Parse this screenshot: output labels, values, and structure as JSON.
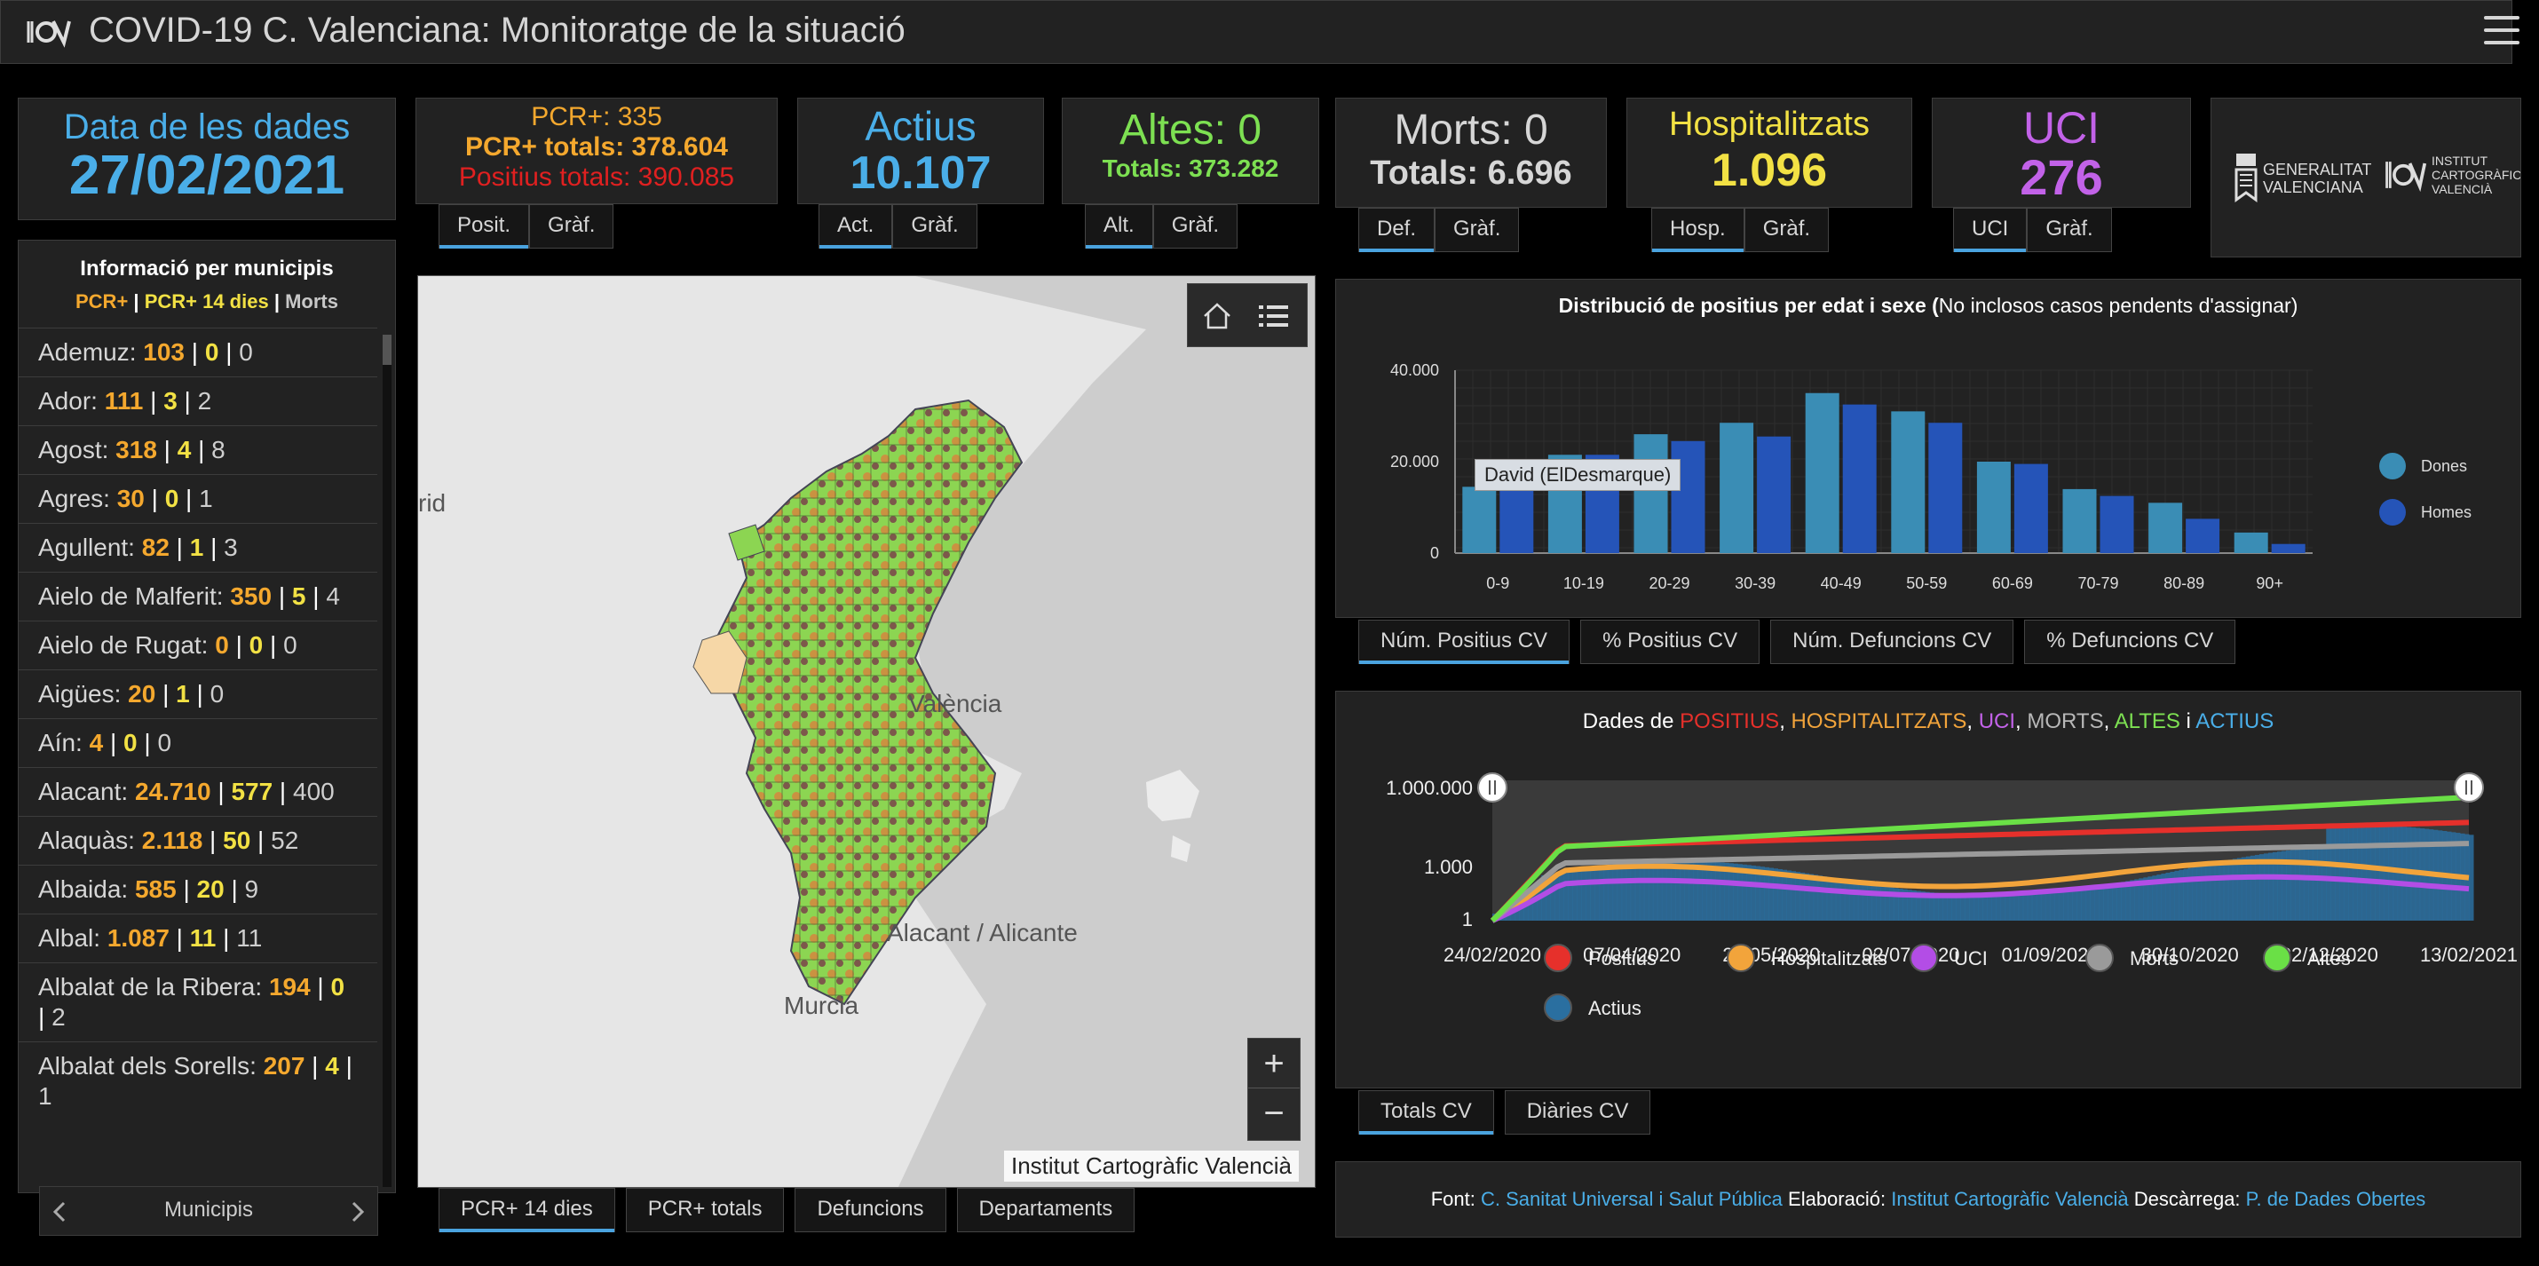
{
  "header": {
    "title": "COVID-19 C. Valenciana: Monitoratge de la situació"
  },
  "date_card": {
    "label": "Data de les dades",
    "value": "27/02/2021"
  },
  "pcr_card": {
    "line1": "PCR+: 335",
    "line2": "PCR+ totals: 378.604",
    "line3": "Positius totals: 390.085",
    "tabs": [
      "Posit.",
      "Gràf."
    ]
  },
  "active_card": {
    "label": "Actius",
    "value": "10.107",
    "tabs": [
      "Act.",
      "Gràf."
    ]
  },
  "altes_card": {
    "label": "Altes: 0",
    "totals": "Totals: 373.282",
    "tabs": [
      "Alt.",
      "Gràf."
    ]
  },
  "morts_card": {
    "label": "Morts: 0",
    "totals": "Totals: 6.696",
    "tabs": [
      "Def.",
      "Gràf."
    ]
  },
  "hosp_card": {
    "label": "Hospitalitzats",
    "value": "1.096",
    "tabs": [
      "Hosp.",
      "Gràf."
    ]
  },
  "uci_card": {
    "label": "UCI",
    "value": "276",
    "tabs": [
      "UCI",
      "Gràf."
    ]
  },
  "logos": {
    "gva_line1": "GENERALITAT",
    "gva_line2": "VALENCIANA",
    "icv_line1": "INSTITUT",
    "icv_line2": "CARTOGRÀFIC",
    "icv_line3": "VALENCIÀ"
  },
  "municipis": {
    "title": "Informació per municipis",
    "legend_pcr": "PCR+",
    "legend_sep1": " | ",
    "legend_pcr14": "PCR+ 14 dies",
    "legend_sep2": " | ",
    "legend_morts": "Morts",
    "items": [
      {
        "name": "Ademuz: ",
        "pcr": "103",
        "p14": "0",
        "morts": "0"
      },
      {
        "name": "Ador: ",
        "pcr": "111",
        "p14": "3",
        "morts": "2"
      },
      {
        "name": "Agost: ",
        "pcr": "318",
        "p14": "4",
        "morts": "8"
      },
      {
        "name": "Agres: ",
        "pcr": "30",
        "p14": "0",
        "morts": "1"
      },
      {
        "name": "Agullent: ",
        "pcr": "82",
        "p14": "1",
        "morts": "3"
      },
      {
        "name": "Aielo de Malferit: ",
        "pcr": "350",
        "p14": "5",
        "morts": "4"
      },
      {
        "name": "Aielo de Rugat: ",
        "pcr": "0",
        "p14": "0",
        "morts": "0"
      },
      {
        "name": "Aigües: ",
        "pcr": "20",
        "p14": "1",
        "morts": "0"
      },
      {
        "name": "Aín: ",
        "pcr": "4",
        "p14": "0",
        "morts": "0"
      },
      {
        "name": "Alacant: ",
        "pcr": "24.710",
        "p14": "577",
        "morts": "400"
      },
      {
        "name": "Alaquàs: ",
        "pcr": "2.118",
        "p14": "50",
        "morts": "52"
      },
      {
        "name": "Albaida: ",
        "pcr": "585",
        "p14": "20",
        "morts": "9"
      },
      {
        "name": "Albal: ",
        "pcr": "1.087",
        "p14": "11",
        "morts": "11"
      },
      {
        "name": "Albalat de la Ribera: ",
        "pcr": "194",
        "p14": "0",
        "morts": "2"
      },
      {
        "name": "Albalat dels Sorells: ",
        "pcr": "207",
        "p14": "4",
        "morts": "1"
      }
    ],
    "pager_label": "Municipis"
  },
  "map": {
    "labels": {
      "madrid": "rid",
      "valencia": "València",
      "alacant": "Alacant / Alicante",
      "murcia": "Murcia"
    },
    "attribution": "Institut Cartogràfic Valencià",
    "zoom_in": "+",
    "zoom_out": "−",
    "tabs": [
      "PCR+ 14 dies",
      "PCR+ totals",
      "Defuncions",
      "Departaments"
    ]
  },
  "bar_chart_panel": {
    "title_bold": "Distribució de positius per edat i sexe (",
    "title_rest": "No inclosos casos pendents d'assignar)",
    "tooltip": "David (ElDesmarque)",
    "tabs": [
      "Núm. Positius CV",
      "% Positius CV",
      "Núm. Defuncions CV",
      "% Defuncions CV"
    ]
  },
  "line_chart_panel": {
    "title_prefix": "Dades de ",
    "t_positius": "POSITIUS",
    "t_hosp": "HOSPITALITZATS",
    "t_uci": "UCI",
    "t_morts": "MORTS",
    "t_altes": "ALTES",
    "t_i": " i ",
    "t_actius": "ACTIUS",
    "comma": ", ",
    "tabs": [
      "Totals CV",
      "Diàries CV"
    ]
  },
  "footer": {
    "font_label": "Font: ",
    "font_link": "C. Sanitat Universal i Salut Pública",
    "elab_label": " Elaboració: ",
    "elab_link": "Institut Cartogràfic Valencià",
    "desc_label": " Descàrrega: ",
    "desc_link": "P. de Dades Obertes"
  },
  "chart_data": [
    {
      "type": "bar",
      "title": "Distribució de positius per edat i sexe (No inclosos casos pendents d'assignar)",
      "categories": [
        "0-9",
        "10-19",
        "20-29",
        "30-39",
        "40-49",
        "50-59",
        "60-69",
        "70-79",
        "80-89",
        "90+"
      ],
      "series": [
        {
          "name": "Dones",
          "color": "#3a8db5",
          "values": [
            14500,
            21500,
            26000,
            28500,
            35000,
            31000,
            20000,
            14000,
            11000,
            4500
          ]
        },
        {
          "name": "Homes",
          "color": "#2554b8",
          "values": [
            15500,
            21500,
            24500,
            25500,
            32500,
            28500,
            19500,
            12500,
            7500,
            2000
          ]
        }
      ],
      "yticks": [
        "0",
        "20.000",
        "40.000"
      ],
      "ylim": [
        0,
        40000
      ],
      "legend": "right"
    },
    {
      "type": "line",
      "scale": "log",
      "yticks": [
        "1",
        "1.000",
        "1.000.000"
      ],
      "xticks": [
        "24/02/2020",
        "07/04/2020",
        "20/05/2020",
        "02/07/2020",
        "01/09/2020",
        "30/10/2020",
        "22/12/2020",
        "13/02/2021"
      ],
      "series": [
        {
          "name": "Positius",
          "color": "#e6302b"
        },
        {
          "name": "Hospitalitzats",
          "color": "#f2a43b"
        },
        {
          "name": "UCI",
          "color": "#b34de6"
        },
        {
          "name": "Morts",
          "color": "#9a9a9a"
        },
        {
          "name": "Altes",
          "color": "#6ae046"
        },
        {
          "name": "Actius",
          "color": "#2a6fa0"
        }
      ],
      "legend": "bottom"
    }
  ]
}
